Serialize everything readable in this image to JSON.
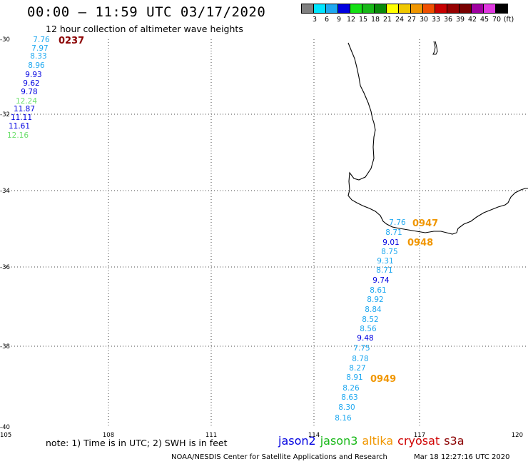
{
  "header": {
    "title": "00:00 – 11:59 UTC 03/17/2020",
    "subtitle": "12 hour collection of altimeter wave heights"
  },
  "legend": {
    "colors": [
      "#808080",
      "#00e5ff",
      "#1ea8f0",
      "#0000e0",
      "#14e014",
      "#18b818",
      "#0a8a0a",
      "#ffff00",
      "#f0c800",
      "#f09600",
      "#f05000",
      "#c80000",
      "#960000",
      "#780000",
      "#a000a0",
      "#e038e0",
      "#000000"
    ],
    "ticks": [
      "3",
      "6",
      "9",
      "12",
      "15",
      "18",
      "21",
      "24",
      "27",
      "30",
      "33",
      "36",
      "39",
      "42",
      "45",
      "70",
      "(ft)"
    ]
  },
  "axes": {
    "lat_labels": [
      "-30",
      "-32",
      "-34",
      "-36",
      "-38",
      "-40"
    ],
    "lon_labels": [
      "105",
      "108",
      "111",
      "114",
      "117",
      "120"
    ]
  },
  "observations": [
    {
      "label": "7.76",
      "color": "#1ea8f0"
    },
    {
      "label": "7.97",
      "color": "#1ea8f0"
    },
    {
      "label": "8.33",
      "color": "#1ea8f0"
    },
    {
      "label": "8.96",
      "color": "#1ea8f0"
    },
    {
      "label": "9.93",
      "color": "#0000e0"
    },
    {
      "label": "9.62",
      "color": "#0000e0"
    },
    {
      "label": "9.78",
      "color": "#0000e0"
    },
    {
      "label": "12.24",
      "color": "#70e070"
    },
    {
      "label": "11.87",
      "color": "#0000e0"
    },
    {
      "label": "11.11",
      "color": "#0000e0"
    },
    {
      "label": "11.61",
      "color": "#0000e0"
    },
    {
      "label": "12.16",
      "color": "#70e070"
    },
    {
      "label": "7.76",
      "color": "#1ea8f0"
    },
    {
      "label": "8.71",
      "color": "#1ea8f0"
    },
    {
      "label": "9.01",
      "color": "#0000e0"
    },
    {
      "label": "8.75",
      "color": "#1ea8f0"
    },
    {
      "label": "9.31",
      "color": "#1ea8f0"
    },
    {
      "label": "8.71",
      "color": "#1ea8f0"
    },
    {
      "label": "9.74",
      "color": "#0000e0"
    },
    {
      "label": "8.61",
      "color": "#1ea8f0"
    },
    {
      "label": "8.92",
      "color": "#1ea8f0"
    },
    {
      "label": "8.84",
      "color": "#1ea8f0"
    },
    {
      "label": "8.52",
      "color": "#1ea8f0"
    },
    {
      "label": "8.56",
      "color": "#1ea8f0"
    },
    {
      "label": "9.48",
      "color": "#0000e0"
    },
    {
      "label": "7.75",
      "color": "#1ea8f0"
    },
    {
      "label": "8.78",
      "color": "#1ea8f0"
    },
    {
      "label": "8.27",
      "color": "#1ea8f0"
    },
    {
      "label": "8.91",
      "color": "#1ea8f0"
    },
    {
      "label": "8.26",
      "color": "#1ea8f0"
    },
    {
      "label": "8.63",
      "color": "#1ea8f0"
    },
    {
      "label": "8.30",
      "color": "#1ea8f0"
    },
    {
      "label": "8.16",
      "color": "#1ea8f0"
    }
  ],
  "pass_times": [
    {
      "label": "0237",
      "color": "#8b0000"
    },
    {
      "label": "0947",
      "color": "#f09600"
    },
    {
      "label": "0948",
      "color": "#f09600"
    },
    {
      "label": "0949",
      "color": "#f09600"
    }
  ],
  "footer": {
    "note": "note: 1) Time is in UTC; 2) SWH is in feet",
    "satellites": [
      {
        "name": "jason2",
        "color": "#0000e0"
      },
      {
        "name": "jason3",
        "color": "#18b818"
      },
      {
        "name": "altika",
        "color": "#f09600"
      },
      {
        "name": "cryosat",
        "color": "#d00000"
      },
      {
        "name": "s3a",
        "color": "#8b0000"
      }
    ],
    "credit": "NOAA/NESDIS Center for Satellite Applications and Research",
    "timestamp": "Mar 18 12:27:16 UTC 2020"
  }
}
